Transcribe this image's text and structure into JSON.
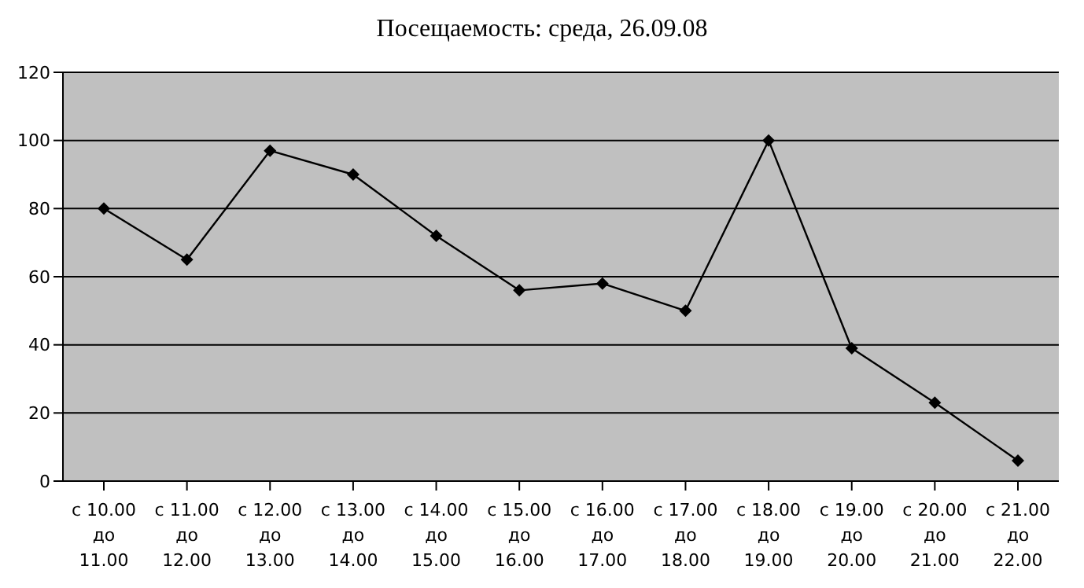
{
  "chart_data": {
    "type": "line",
    "title": "Посещаемость: среда, 26.09.08",
    "categories": [
      "с 10.00\nдо\n11.00",
      "с 11.00\nдо\n12.00",
      "с 12.00\nдо\n13.00",
      "с 13.00\nдо\n14.00",
      "с 14.00\nдо\n15.00",
      "с 15.00\nдо\n16.00",
      "с 16.00\nдо\n17.00",
      "с 17.00\nдо\n18.00",
      "с 18.00\nдо\n19.00",
      "с 19.00\nдо\n20.00",
      "с 20.00\nдо\n21.00",
      "с 21.00\nдо\n22.00"
    ],
    "series": [
      {
        "color": "#000000",
        "values": [
          80,
          65,
          97,
          90,
          72,
          56,
          58,
          50,
          100,
          39,
          23,
          6
        ]
      }
    ],
    "ylim": [
      0,
      120
    ],
    "yticks": [
      0,
      20,
      40,
      60,
      80,
      100,
      120
    ],
    "grid": "y",
    "marker": "diamond",
    "line_style": "solid"
  }
}
